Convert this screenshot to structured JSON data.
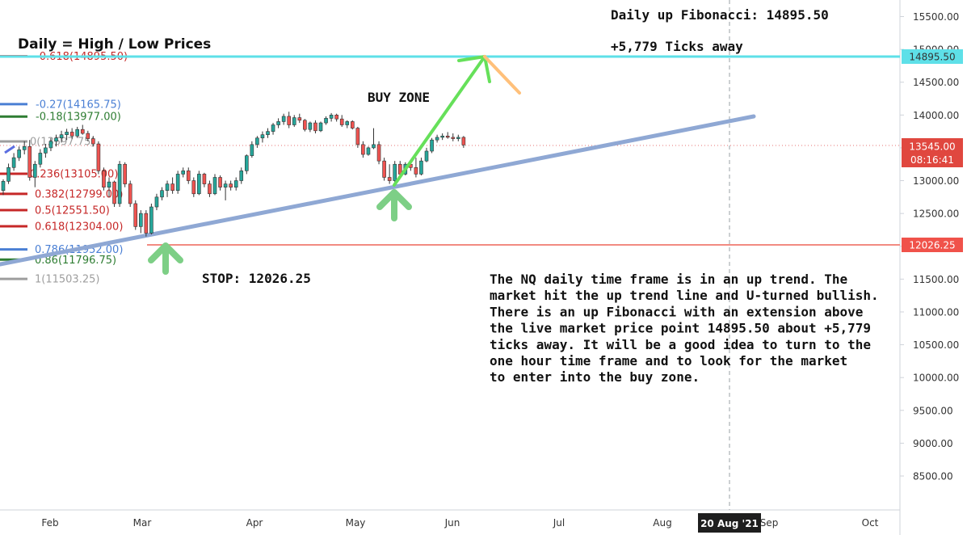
{
  "chart_data": {
    "type": "candlestick",
    "title": "Daily = High / Low Prices",
    "price_axis": {
      "min": 8100,
      "max": 15900,
      "ticks": [
        "15500.00",
        "15000.00",
        "14500.00",
        "14000.00",
        "13500.00",
        "13000.00",
        "12500.00",
        "12000.00",
        "11500.00",
        "11000.00",
        "10500.00",
        "10000.00",
        "9500.00",
        "9000.00",
        "8500.00"
      ]
    },
    "time_axis": {
      "ticks": [
        "Feb",
        "Mar",
        "Apr",
        "May",
        "Jun",
        "Jul",
        "Aug",
        "Sep",
        "Oct"
      ],
      "crosshair_label": "20 Aug '21"
    },
    "price_labels": [
      {
        "text": "14895.50",
        "value": 14895.5,
        "color": "#4dd9e0"
      },
      {
        "text": "13545.00",
        "value": 13545,
        "color": "#e0473f"
      },
      {
        "text": "08:16:41",
        "value": 13545,
        "color": "#e0473f"
      },
      {
        "text": "12026.25",
        "value": 12026.25,
        "color": "#f0524a"
      }
    ],
    "fibonacci": [
      {
        "label": "-0.618(14895.50)",
        "value": 14895.5,
        "color": "#c62828"
      },
      {
        "label": "-0.27(14165.75)",
        "value": 14165.75,
        "color": "#4a7fd4"
      },
      {
        "label": "-0.18(13977.00)",
        "value": 13977,
        "color": "#2e7d32"
      },
      {
        "label": "0(13597.75)",
        "value": 13597.75,
        "color": "#9e9e9e"
      },
      {
        "label": "0.236(13105.00)",
        "value": 13105,
        "color": "#c62828"
      },
      {
        "label": "0.382(12799.00)",
        "value": 12799,
        "color": "#c62828"
      },
      {
        "label": "0.5(12551.50)",
        "value": 12551.5,
        "color": "#c62828"
      },
      {
        "label": "0.618(12304.00)",
        "value": 12304,
        "color": "#c62828"
      },
      {
        "label": "0.786(11952.00)",
        "value": 11952,
        "color": "#4a7fd4"
      },
      {
        "label": "0.86(11796.75)",
        "value": 11796.75,
        "color": "#2e7d32"
      },
      {
        "label": "1(11503.25)",
        "value": 11503.25,
        "color": "#9e9e9e"
      }
    ],
    "candles": [
      {
        "o": 12850,
        "h": 13020,
        "l": 12780,
        "c": 12990
      },
      {
        "o": 12990,
        "h": 13260,
        "l": 12950,
        "c": 13200
      },
      {
        "o": 13200,
        "h": 13420,
        "l": 13150,
        "c": 13350
      },
      {
        "o": 13350,
        "h": 13520,
        "l": 13300,
        "c": 13470
      },
      {
        "o": 13470,
        "h": 13600,
        "l": 13400,
        "c": 13520
      },
      {
        "o": 13520,
        "h": 13620,
        "l": 13000,
        "c": 13050
      },
      {
        "o": 13050,
        "h": 13300,
        "l": 12900,
        "c": 13250
      },
      {
        "o": 13250,
        "h": 13480,
        "l": 13200,
        "c": 13420
      },
      {
        "o": 13420,
        "h": 13560,
        "l": 13350,
        "c": 13500
      },
      {
        "o": 13500,
        "h": 13650,
        "l": 13450,
        "c": 13600
      },
      {
        "o": 13600,
        "h": 13700,
        "l": 13520,
        "c": 13650
      },
      {
        "o": 13650,
        "h": 13760,
        "l": 13580,
        "c": 13700
      },
      {
        "o": 13700,
        "h": 13790,
        "l": 13620,
        "c": 13740
      },
      {
        "o": 13740,
        "h": 13800,
        "l": 13640,
        "c": 13680
      },
      {
        "o": 13680,
        "h": 13820,
        "l": 13650,
        "c": 13780
      },
      {
        "o": 13780,
        "h": 13850,
        "l": 13700,
        "c": 13720
      },
      {
        "o": 13720,
        "h": 13760,
        "l": 13600,
        "c": 13640
      },
      {
        "o": 13640,
        "h": 13680,
        "l": 13520,
        "c": 13560
      },
      {
        "o": 13560,
        "h": 13600,
        "l": 13100,
        "c": 13150
      },
      {
        "o": 13150,
        "h": 13200,
        "l": 12850,
        "c": 12900
      },
      {
        "o": 12900,
        "h": 13050,
        "l": 12750,
        "c": 12980
      },
      {
        "o": 12980,
        "h": 13000,
        "l": 12600,
        "c": 12650
      },
      {
        "o": 12650,
        "h": 13300,
        "l": 12600,
        "c": 13250
      },
      {
        "o": 13250,
        "h": 13280,
        "l": 12900,
        "c": 12950
      },
      {
        "o": 12950,
        "h": 13000,
        "l": 12600,
        "c": 12650
      },
      {
        "o": 12650,
        "h": 12700,
        "l": 12250,
        "c": 12300
      },
      {
        "o": 12300,
        "h": 12550,
        "l": 12200,
        "c": 12500
      },
      {
        "o": 12500,
        "h": 12550,
        "l": 12150,
        "c": 12200
      },
      {
        "o": 12200,
        "h": 12650,
        "l": 12180,
        "c": 12600
      },
      {
        "o": 12600,
        "h": 12800,
        "l": 12550,
        "c": 12750
      },
      {
        "o": 12750,
        "h": 12900,
        "l": 12700,
        "c": 12850
      },
      {
        "o": 12850,
        "h": 13000,
        "l": 12750,
        "c": 12950
      },
      {
        "o": 12950,
        "h": 13050,
        "l": 12800,
        "c": 12850
      },
      {
        "o": 12850,
        "h": 13150,
        "l": 12800,
        "c": 13100
      },
      {
        "o": 13100,
        "h": 13200,
        "l": 13050,
        "c": 13150
      },
      {
        "o": 13150,
        "h": 13200,
        "l": 12950,
        "c": 13000
      },
      {
        "o": 13000,
        "h": 13050,
        "l": 12750,
        "c": 12800
      },
      {
        "o": 12800,
        "h": 13150,
        "l": 12780,
        "c": 13100
      },
      {
        "o": 13100,
        "h": 13120,
        "l": 12900,
        "c": 12950
      },
      {
        "o": 12950,
        "h": 13000,
        "l": 12750,
        "c": 12800
      },
      {
        "o": 12800,
        "h": 13100,
        "l": 12780,
        "c": 13050
      },
      {
        "o": 13050,
        "h": 13080,
        "l": 12850,
        "c": 12900
      },
      {
        "o": 12900,
        "h": 13000,
        "l": 12700,
        "c": 12950
      },
      {
        "o": 12950,
        "h": 13000,
        "l": 12850,
        "c": 12900
      },
      {
        "o": 12900,
        "h": 13050,
        "l": 12850,
        "c": 13000
      },
      {
        "o": 13000,
        "h": 13200,
        "l": 12950,
        "c": 13150
      },
      {
        "o": 13150,
        "h": 13400,
        "l": 13100,
        "c": 13380
      },
      {
        "o": 13380,
        "h": 13600,
        "l": 13350,
        "c": 13550
      },
      {
        "o": 13550,
        "h": 13680,
        "l": 13500,
        "c": 13650
      },
      {
        "o": 13650,
        "h": 13750,
        "l": 13580,
        "c": 13700
      },
      {
        "o": 13700,
        "h": 13800,
        "l": 13650,
        "c": 13750
      },
      {
        "o": 13750,
        "h": 13880,
        "l": 13700,
        "c": 13850
      },
      {
        "o": 13850,
        "h": 13950,
        "l": 13800,
        "c": 13900
      },
      {
        "o": 13900,
        "h": 14020,
        "l": 13850,
        "c": 13980
      },
      {
        "o": 13980,
        "h": 14050,
        "l": 13800,
        "c": 13850
      },
      {
        "o": 13850,
        "h": 14000,
        "l": 13820,
        "c": 13960
      },
      {
        "o": 13960,
        "h": 14020,
        "l": 13880,
        "c": 13920
      },
      {
        "o": 13920,
        "h": 13940,
        "l": 13750,
        "c": 13780
      },
      {
        "o": 13780,
        "h": 13900,
        "l": 13740,
        "c": 13880
      },
      {
        "o": 13880,
        "h": 13920,
        "l": 13720,
        "c": 13760
      },
      {
        "o": 13760,
        "h": 13900,
        "l": 13740,
        "c": 13880
      },
      {
        "o": 13880,
        "h": 13980,
        "l": 13850,
        "c": 13950
      },
      {
        "o": 13950,
        "h": 14030,
        "l": 13900,
        "c": 14000
      },
      {
        "o": 14000,
        "h": 14020,
        "l": 13900,
        "c": 13940
      },
      {
        "o": 13940,
        "h": 14000,
        "l": 13820,
        "c": 13850
      },
      {
        "o": 13850,
        "h": 13920,
        "l": 13800,
        "c": 13900
      },
      {
        "o": 13900,
        "h": 13920,
        "l": 13780,
        "c": 13800
      },
      {
        "o": 13800,
        "h": 13820,
        "l": 13500,
        "c": 13550
      },
      {
        "o": 13550,
        "h": 13600,
        "l": 13350,
        "c": 13400
      },
      {
        "o": 13400,
        "h": 13520,
        "l": 13380,
        "c": 13500
      },
      {
        "o": 13500,
        "h": 13800,
        "l": 13480,
        "c": 13550
      },
      {
        "o": 13550,
        "h": 13600,
        "l": 13250,
        "c": 13300
      },
      {
        "o": 13300,
        "h": 13350,
        "l": 13000,
        "c": 13050
      },
      {
        "o": 13050,
        "h": 13250,
        "l": 12950,
        "c": 13000
      },
      {
        "o": 13000,
        "h": 13300,
        "l": 12980,
        "c": 13250
      },
      {
        "o": 13250,
        "h": 13300,
        "l": 13050,
        "c": 13100
      },
      {
        "o": 13100,
        "h": 13280,
        "l": 13080,
        "c": 13250
      },
      {
        "o": 13250,
        "h": 13300,
        "l": 13150,
        "c": 13200
      },
      {
        "o": 13200,
        "h": 13350,
        "l": 13050,
        "c": 13100
      },
      {
        "o": 13100,
        "h": 13350,
        "l": 13080,
        "c": 13300
      },
      {
        "o": 13300,
        "h": 13500,
        "l": 13280,
        "c": 13450
      },
      {
        "o": 13450,
        "h": 13650,
        "l": 13420,
        "c": 13620
      },
      {
        "o": 13620,
        "h": 13700,
        "l": 13580,
        "c": 13660
      },
      {
        "o": 13660,
        "h": 13720,
        "l": 13620,
        "c": 13680
      },
      {
        "o": 13680,
        "h": 13740,
        "l": 13640,
        "c": 13660
      },
      {
        "o": 13660,
        "h": 13720,
        "l": 13600,
        "c": 13640
      },
      {
        "o": 13640,
        "h": 13700,
        "l": 13600,
        "c": 13660
      },
      {
        "o": 13660,
        "h": 13680,
        "l": 13500,
        "c": 13545
      }
    ],
    "annotations": {
      "fib_target": "Daily up Fibonacci: 14895.50",
      "ticks_away": "+5,779 Ticks away",
      "buy_zone": "BUY ZONE",
      "stop": "STOP: 12026.25",
      "analysis": [
        "The NQ daily time frame is in an up trend. The",
        "market hit the up trend line and U-turned  bullish.",
        "There is an up Fibonacci with an extension above",
        "the live market price point 14895.50 about +5,779",
        "ticks away. It will be a good idea to turn to the",
        "one hour time frame and to look for the market",
        "to enter into the buy zone."
      ]
    },
    "colors": {
      "up": "#26a69a",
      "down": "#ef5350",
      "trendline": "#8fa8d4",
      "target_line": "#5ee0e8",
      "stop_line": "#f28b82",
      "arrow_green": "#66e05a",
      "arrow_orange": "#ffc07a",
      "up_arrows": "#7dcf86"
    }
  }
}
